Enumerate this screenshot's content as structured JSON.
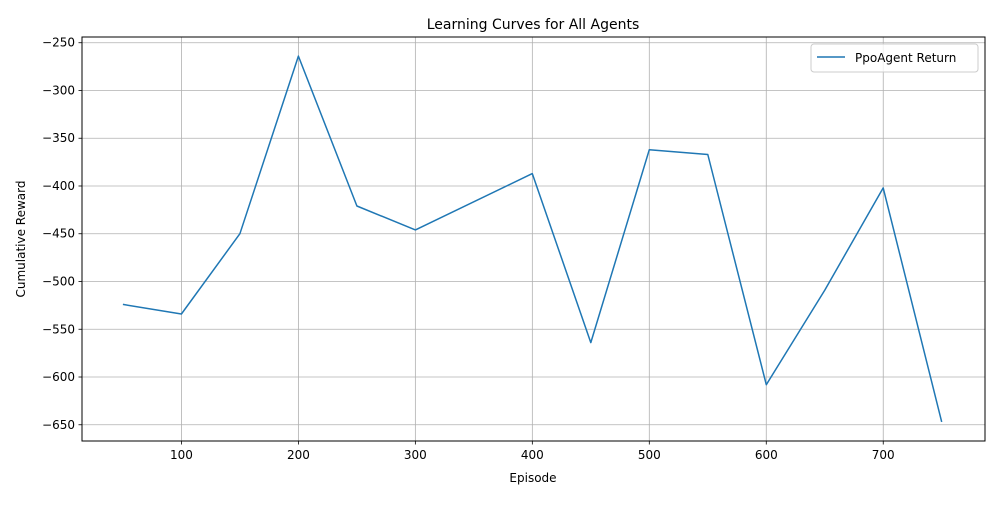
{
  "chart_data": {
    "type": "line",
    "title": "Learning Curves for All Agents",
    "xlabel": "Episode",
    "ylabel": "Cumulative Reward",
    "xlim": [
      15,
      787
    ],
    "ylim": [
      -667,
      -244
    ],
    "xticks": [
      100,
      200,
      300,
      400,
      500,
      600,
      700
    ],
    "yticks": [
      -250,
      -300,
      -350,
      -400,
      -450,
      -500,
      -550,
      -600,
      -650
    ],
    "grid": true,
    "legend_position": "upper right",
    "series": [
      {
        "name": "PpoAgent Return",
        "color": "#1f77b4",
        "x": [
          50,
          100,
          150,
          200,
          250,
          300,
          400,
          450,
          500,
          550,
          600,
          650,
          700,
          750
        ],
        "y": [
          -524,
          -534,
          -450,
          -264,
          -421,
          -446,
          -387,
          -564,
          -362,
          -367,
          -608,
          -509,
          -402,
          -647
        ]
      }
    ]
  }
}
